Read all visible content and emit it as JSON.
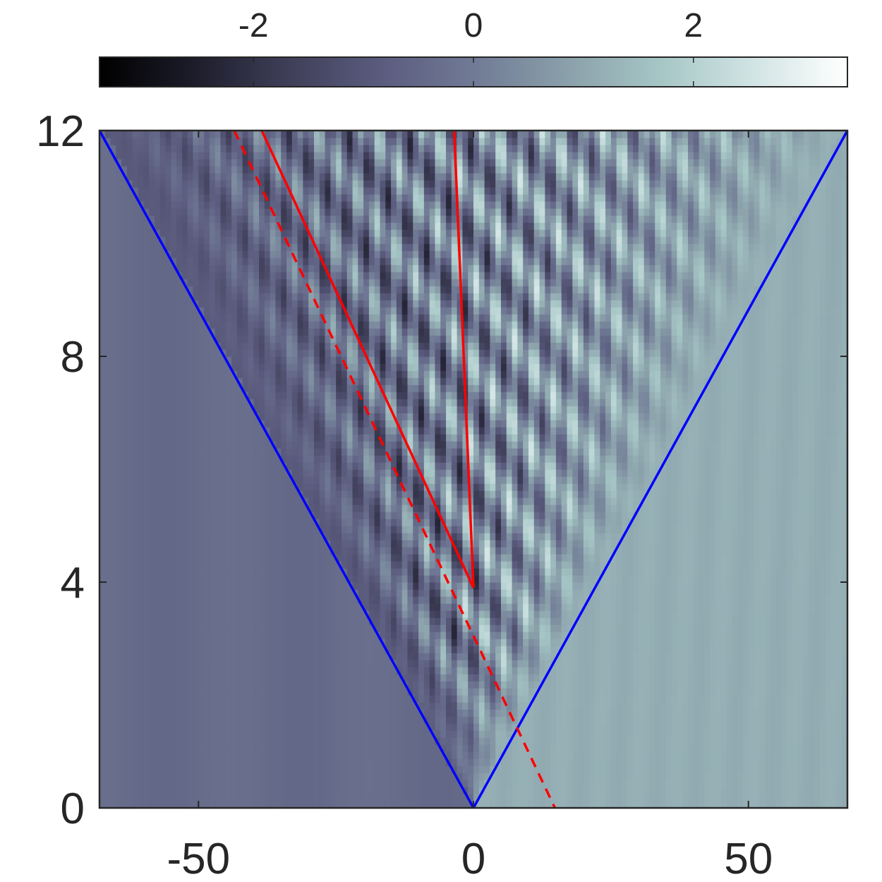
{
  "chart_data": {
    "type": "heatmap",
    "title": "",
    "xlabel": "",
    "ylabel": "",
    "xlim": [
      -68,
      68
    ],
    "ylim": [
      0,
      12
    ],
    "x_ticks": [
      -50,
      0,
      50
    ],
    "y_ticks": [
      0,
      4,
      8,
      12
    ],
    "x_tick_labels": [
      "-50",
      "0",
      "50"
    ],
    "y_tick_labels": [
      "0",
      "4",
      "8",
      "12"
    ],
    "colorbar": {
      "position": "top",
      "range": [
        -3.4,
        3.4
      ],
      "ticks": [
        -2,
        0,
        2
      ],
      "tick_labels": [
        "-2",
        "0",
        "2"
      ],
      "colormap": [
        "#000000",
        "#1c1c2a",
        "#3e3e58",
        "#5b5b7e",
        "#707a95",
        "#8aa0aa",
        "#a6c6c6",
        "#d2e4e4",
        "#ffffff"
      ]
    },
    "background_values": {
      "left_of_fan": -0.3,
      "right_of_fan": 1.15
    },
    "series": [
      {
        "color": "#0000ff",
        "style": "solid",
        "x": [
          -68,
          0,
          68
        ],
        "y": [
          12,
          0,
          12
        ]
      },
      {
        "color": "#ff0000",
        "style": "solid",
        "x": [
          -38.5,
          0
        ],
        "y": [
          12,
          3.9
        ]
      },
      {
        "color": "#ff0000",
        "style": "solid",
        "x": [
          -3.5,
          0
        ],
        "y": [
          12,
          3.9
        ]
      },
      {
        "color": "#ff0000",
        "style": "dashed",
        "x": [
          -43.5,
          14.8
        ],
        "y": [
          12,
          0
        ]
      }
    ],
    "grid": false,
    "legend": "none"
  }
}
